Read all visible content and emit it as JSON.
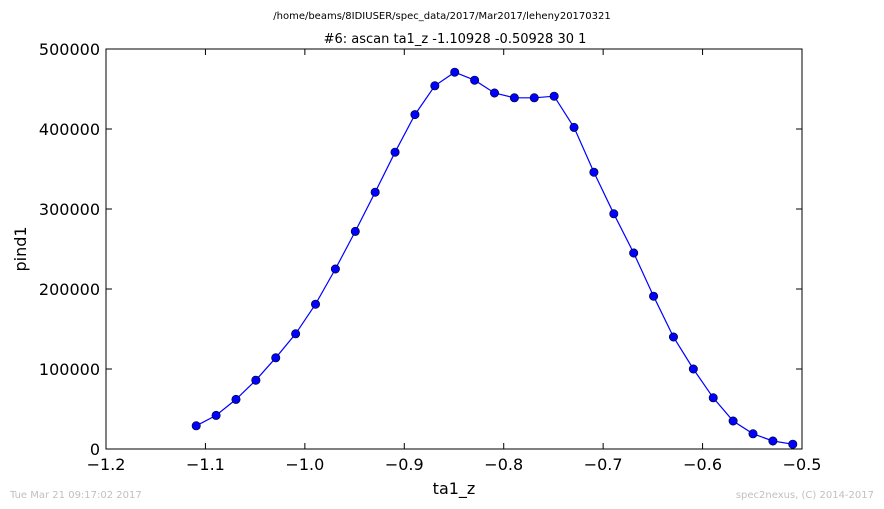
{
  "page": {
    "suptitle": "/home/beams/8IDIUSER/spec_data/2017/Mar2017/leheny20170321",
    "footer_left": "Tue Mar 21 09:17:02 2017",
    "footer_right": "spec2nexus, (C) 2014-2017"
  },
  "chart_data": {
    "type": "line",
    "title": "#6: ascan  ta1_z -1.10928 -0.50928  30 1",
    "xlabel": "ta1_z",
    "ylabel": "pind1",
    "xlim": [
      -1.2,
      -0.5
    ],
    "ylim": [
      0,
      500000
    ],
    "x_ticks": [
      -1.2,
      -1.1,
      -1.0,
      -0.9,
      -0.8,
      -0.7,
      -0.6,
      -0.5
    ],
    "x_tick_labels": [
      "−1.2",
      "−1.1",
      "−1.0",
      "−0.9",
      "−0.8",
      "−0.7",
      "−0.6",
      "−0.5"
    ],
    "y_ticks": [
      0,
      100000,
      200000,
      300000,
      400000,
      500000
    ],
    "y_tick_labels": [
      "0",
      "100000",
      "200000",
      "300000",
      "400000",
      "500000"
    ],
    "grid": false,
    "series": [
      {
        "color": "#0000ff",
        "marker": "circle",
        "x": [
          -1.10928,
          -1.08928,
          -1.06928,
          -1.04928,
          -1.02928,
          -1.00928,
          -0.98928,
          -0.96928,
          -0.94928,
          -0.92928,
          -0.90928,
          -0.88928,
          -0.86928,
          -0.84928,
          -0.82928,
          -0.80928,
          -0.78928,
          -0.76928,
          -0.74928,
          -0.72928,
          -0.70928,
          -0.68928,
          -0.66928,
          -0.64928,
          -0.62928,
          -0.60928,
          -0.58928,
          -0.56928,
          -0.54928,
          -0.52928,
          -0.50928
        ],
        "y": [
          29000,
          42000,
          62000,
          86000,
          114000,
          144000,
          181000,
          225000,
          272000,
          321000,
          371000,
          418000,
          454000,
          471000,
          461000,
          445000,
          439000,
          439000,
          441000,
          402000,
          346000,
          294000,
          245000,
          191000,
          140000,
          100000,
          64000,
          35000,
          19000,
          10000,
          6000
        ]
      }
    ]
  }
}
